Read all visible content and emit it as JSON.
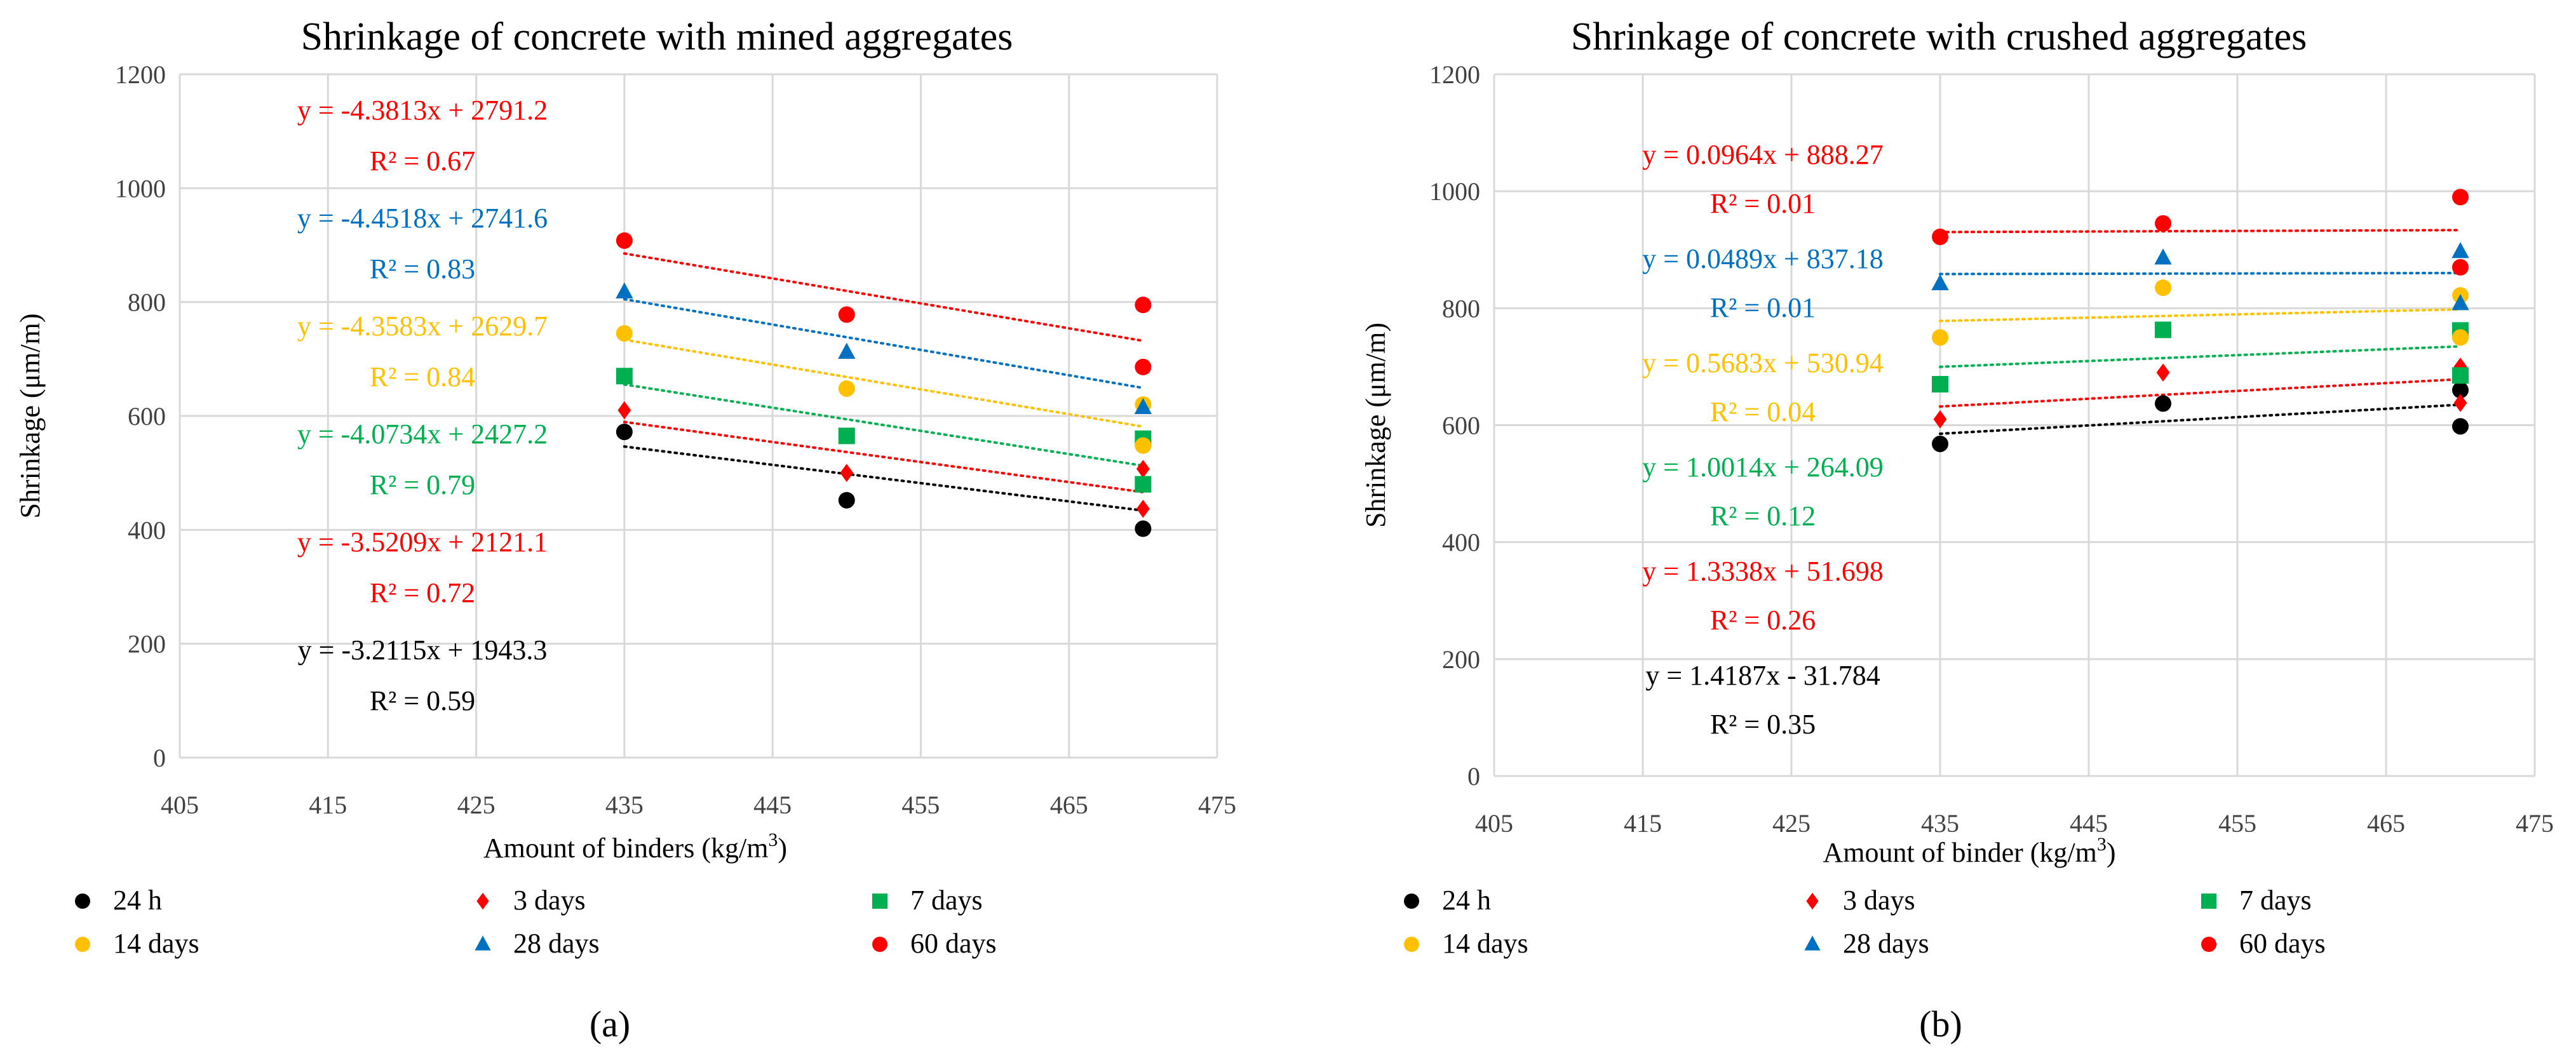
{
  "chart_data": [
    {
      "type": "scatter",
      "panel_label": "(a)",
      "title": "Shrinkage of concrete with mined aggregates",
      "xlabel": "Amount of binders (kg/m",
      "xlabel_sup": "3",
      "xlabel_end": ")",
      "ylabel": "Shrinkage (μm/m)",
      "xlim": [
        405,
        475
      ],
      "ylim": [
        0,
        1200
      ],
      "xticks": [
        "405",
        "415",
        "425",
        "435",
        "445",
        "455",
        "465",
        "475"
      ],
      "yticks": [
        "0",
        "200",
        "400",
        "600",
        "800",
        "1000",
        "1200"
      ],
      "grid": true,
      "legend_position": "bottom",
      "series": [
        {
          "name": "24 h",
          "marker": "circle",
          "color": "#000000",
          "x": [
            435,
            450,
            470
          ],
          "y": [
            572,
            452,
            402
          ],
          "trend": {
            "slope": -3.2115,
            "intercept": 1943.3,
            "equation": "y = -3.2115x + 1943.3",
            "r2": "R² = 0.59"
          }
        },
        {
          "name": "3 days",
          "marker": "diamond",
          "color": "#ff0000",
          "x": [
            435,
            450,
            470,
            470
          ],
          "y": [
            610,
            500,
            507,
            437
          ],
          "trend": {
            "slope": -3.5209,
            "intercept": 2121.1,
            "equation": "y = -3.5209x + 2121.1",
            "r2": "R² = 0.72"
          }
        },
        {
          "name": "7 days",
          "marker": "square",
          "color": "#00b050",
          "x": [
            435,
            450,
            470,
            470
          ],
          "y": [
            670,
            565,
            560,
            480
          ],
          "trend": {
            "slope": -4.0734,
            "intercept": 2427.2,
            "equation": "y = -4.0734x + 2427.2",
            "r2": "R² = 0.79"
          }
        },
        {
          "name": "14 days",
          "marker": "circle",
          "color": "#ffc000",
          "x": [
            435,
            450,
            470,
            470
          ],
          "y": [
            745,
            648,
            620,
            548
          ],
          "trend": {
            "slope": -4.3583,
            "intercept": 2629.7,
            "equation": "y = -4.3583x + 2629.7",
            "r2": "R² = 0.84"
          }
        },
        {
          "name": "28 days",
          "marker": "triangle",
          "color": "#0070c0",
          "x": [
            435,
            450,
            470
          ],
          "y": [
            818,
            712,
            615
          ],
          "trend": {
            "slope": -4.4518,
            "intercept": 2741.6,
            "equation": "y = -4.4518x + 2741.6",
            "r2": "R² = 0.83"
          }
        },
        {
          "name": "60 days",
          "marker": "circle",
          "color": "#ff0000",
          "x": [
            435,
            450,
            470,
            470
          ],
          "y": [
            908,
            778,
            795,
            686
          ],
          "trend": {
            "slope": -4.3813,
            "intercept": 2791.2,
            "equation": "y = -4.3813x + 2791.2",
            "r2": "R² = 0.67"
          }
        }
      ]
    },
    {
      "type": "scatter",
      "panel_label": "(b)",
      "title": "Shrinkage of concrete with crushed aggregates",
      "xlabel": "Amount of binder (kg/m",
      "xlabel_sup": "3",
      "xlabel_end": ")",
      "ylabel": "Shrinkage (μm/m)",
      "xlim": [
        405,
        475
      ],
      "ylim": [
        0,
        1200
      ],
      "xticks": [
        "405",
        "415",
        "425",
        "435",
        "445",
        "455",
        "465",
        "475"
      ],
      "yticks": [
        "0",
        "200",
        "400",
        "600",
        "800",
        "1000",
        "1200"
      ],
      "grid": true,
      "legend_position": "bottom",
      "series": [
        {
          "name": "24 h",
          "marker": "circle",
          "color": "#000000",
          "x": [
            435,
            450,
            470,
            470
          ],
          "y": [
            568,
            637,
            660,
            598
          ],
          "trend": {
            "slope": 1.4187,
            "intercept": -31.784,
            "equation": "y = 1.4187x - 31.784",
            "r2": "R² = 0.35"
          }
        },
        {
          "name": "3 days",
          "marker": "diamond",
          "color": "#ff0000",
          "x": [
            435,
            450,
            470,
            470
          ],
          "y": [
            610,
            690,
            700,
            638
          ],
          "trend": {
            "slope": 1.3338,
            "intercept": 51.698,
            "equation": "y = 1.3338x + 51.698",
            "r2": "R² = 0.26"
          }
        },
        {
          "name": "7 days",
          "marker": "square",
          "color": "#00b050",
          "x": [
            435,
            450,
            470,
            470
          ],
          "y": [
            670,
            763,
            762,
            685
          ],
          "trend": {
            "slope": 1.0014,
            "intercept": 264.09,
            "equation": "y = 1.0014x + 264.09",
            "r2": "R² = 0.12"
          }
        },
        {
          "name": "14 days",
          "marker": "circle",
          "color": "#ffc000",
          "x": [
            435,
            450,
            470,
            470
          ],
          "y": [
            750,
            835,
            822,
            750
          ],
          "trend": {
            "slope": 0.5683,
            "intercept": 530.94,
            "equation": "y = 0.5683x + 530.94",
            "r2": "R² = 0.04"
          }
        },
        {
          "name": "28 days",
          "marker": "triangle",
          "color": "#0070c0",
          "x": [
            435,
            450,
            470,
            470
          ],
          "y": [
            842,
            886,
            897,
            808
          ],
          "trend": {
            "slope": 0.0489,
            "intercept": 837.18,
            "equation": "y = 0.0489x + 837.18",
            "r2": "R² = 0.01"
          }
        },
        {
          "name": "60 days",
          "marker": "circle",
          "color": "#ff0000",
          "x": [
            435,
            450,
            470,
            470
          ],
          "y": [
            922,
            945,
            990,
            870
          ],
          "trend": {
            "slope": 0.0964,
            "intercept": 888.27,
            "equation": "y = 0.0964x + 888.27",
            "r2": "R² = 0.01"
          }
        }
      ]
    }
  ]
}
